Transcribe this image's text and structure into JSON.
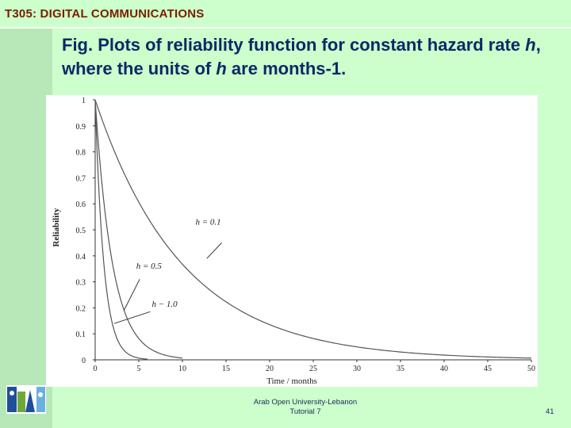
{
  "header": {
    "course_title": "T305: DIGITAL COMMUNICATIONS"
  },
  "slide": {
    "title_part1": "Fig. Plots of reliability function for constant hazard rate ",
    "title_h1": "h",
    "title_part2": ", where the units of ",
    "title_h2": "h",
    "title_part3": " are months-1."
  },
  "footer": {
    "line1": "Arab Open University-Lebanon",
    "line2": "Tutorial 7",
    "page_number": "41"
  },
  "chart_data": {
    "type": "line",
    "title": "",
    "xlabel": "Time / months",
    "ylabel": "Reliability",
    "xlim": [
      0,
      50
    ],
    "ylim": [
      0,
      1
    ],
    "x_ticks": [
      "0",
      "5",
      "10",
      "15",
      "20",
      "25",
      "30",
      "35",
      "40",
      "45",
      "50"
    ],
    "y_ticks": [
      "0",
      "0.1",
      "0.2",
      "0.3",
      "0.4",
      "0.5",
      "0.6",
      "0.7",
      "0.8",
      "0.9",
      "1"
    ],
    "series": [
      {
        "name": "h = 0.1",
        "function": "exp(-0.1 t)",
        "x_end": 50
      },
      {
        "name": "h = 0.5",
        "function": "exp(-0.5 t)",
        "x_end": 10
      },
      {
        "name": "h = 1.0",
        "function": "exp(-1.0 t)",
        "x_end": 6
      }
    ],
    "annotations": [
      "h = 0.1",
      "h = 0.5",
      "h − 1.0"
    ],
    "grid": false,
    "line_color": "#555555"
  }
}
